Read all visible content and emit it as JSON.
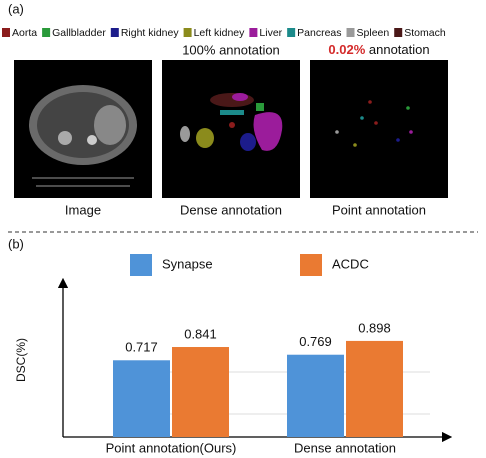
{
  "panel_a": {
    "label": "(a)",
    "legend": [
      {
        "name": "Aorta",
        "color": "#8b1c1c"
      },
      {
        "name": "Gallbladder",
        "color": "#2a9a3a"
      },
      {
        "name": "Right kidney",
        "color": "#1c1c8b"
      },
      {
        "name": "Left kidney",
        "color": "#8b8b1c"
      },
      {
        "name": "Liver",
        "color": "#9b1c9b"
      },
      {
        "name": "Pancreas",
        "color": "#1c8b8b"
      },
      {
        "name": "Spleen",
        "color": "#9a9a9a"
      },
      {
        "name": "Stomach",
        "color": "#4a1818"
      }
    ],
    "subtitles": [
      {
        "text": "100% annotation"
      },
      {
        "highlight": "0.02%",
        "text": " annotation"
      }
    ],
    "captions": [
      "Image",
      "Dense annotation",
      "Point annotation"
    ]
  },
  "chart_data": {
    "type": "bar",
    "label": "(b)",
    "ylabel": "DSC(%)",
    "categories": [
      "Point annotation(Ours)",
      "Dense annotation"
    ],
    "series": [
      {
        "name": "Synapse",
        "color": "#4f93d8",
        "values": [
          0.717,
          0.769
        ]
      },
      {
        "name": "ACDC",
        "color": "#ea7a32",
        "values": [
          0.841,
          0.898
        ]
      }
    ],
    "ylim": [
      0,
      1
    ]
  }
}
